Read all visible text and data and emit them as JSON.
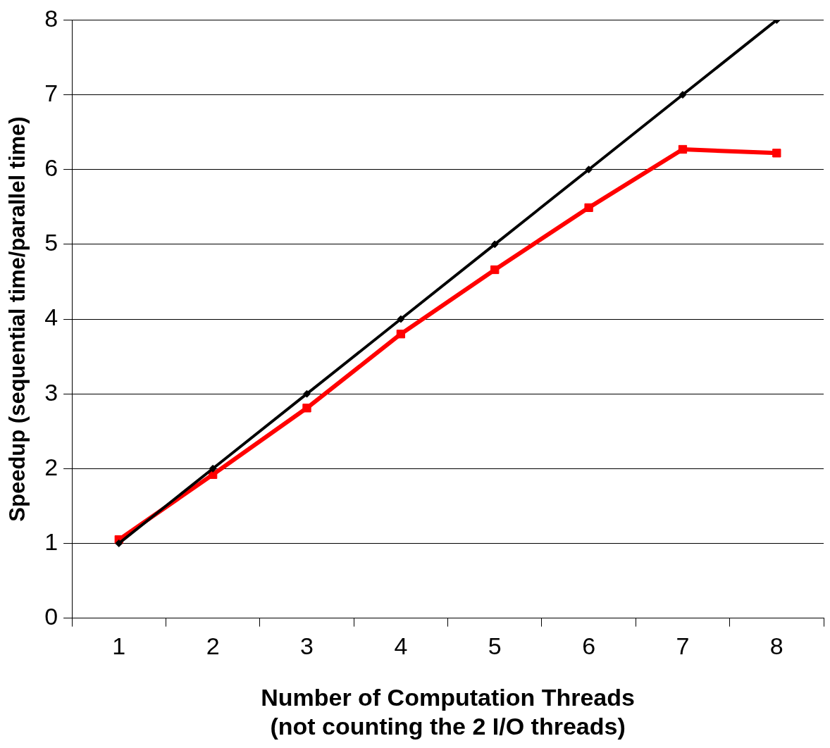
{
  "chart_data": {
    "type": "line",
    "xlabel": "Number of Computation Threads\n(not counting the 2 I/O threads)",
    "ylabel": "Speedup (sequential time/parallel time)",
    "categories": [
      "1",
      "2",
      "3",
      "4",
      "5",
      "6",
      "7",
      "8"
    ],
    "series": [
      {
        "color": "#000000",
        "marker": "diamond",
        "values": [
          1,
          2,
          3,
          4,
          5,
          6,
          7,
          8
        ]
      },
      {
        "color": "#ff0000",
        "marker": "square",
        "values": [
          1.05,
          1.92,
          2.81,
          3.8,
          4.66,
          5.49,
          6.27,
          6.22
        ]
      }
    ],
    "ylim": [
      0,
      8
    ],
    "yticks": [
      0,
      1,
      2,
      3,
      4,
      5,
      6,
      7,
      8
    ],
    "grid": "y",
    "legend": false,
    "line_style": "solid"
  }
}
